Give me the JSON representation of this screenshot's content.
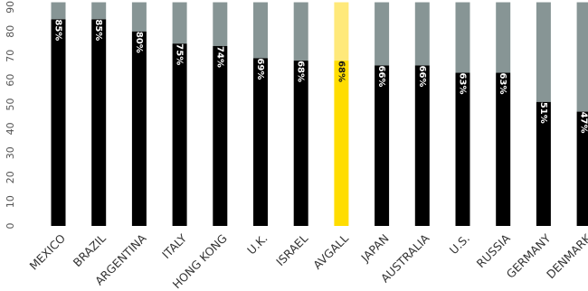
{
  "chart_data": {
    "type": "bar",
    "stacked": true,
    "categories": [
      "MEXICO",
      "BRAZIL",
      "ARGENTINA",
      "ITALY",
      "HONG KONG",
      "U.K.",
      "ISRAEL",
      "AVGALL",
      "JAPAN",
      "AUSTRALIA",
      "U.S.",
      "RUSSIA",
      "GERMANY",
      "DENMARK"
    ],
    "values": [
      85,
      85,
      80,
      75,
      74,
      69,
      68,
      68,
      66,
      66,
      63,
      63,
      51,
      47
    ],
    "value_labels": [
      "85%",
      "85%",
      "80%",
      "75%",
      "74%",
      "69%",
      "68%",
      "68%",
      "66%",
      "66%",
      "63%",
      "63%",
      "51%",
      "47%"
    ],
    "total": [
      92,
      92,
      92,
      92,
      92,
      92,
      92,
      92,
      92,
      92,
      92,
      92,
      92,
      92
    ],
    "highlight_category": "AVGALL",
    "yticks": [
      0,
      10,
      20,
      30,
      40,
      50,
      60,
      70,
      80,
      90
    ],
    "ylim": [
      0,
      92
    ],
    "grid": false,
    "legend": "none",
    "colors": {
      "bar": "#000000",
      "remainder": "#879595",
      "highlight_bar": "#ffdd00",
      "highlight_remainder": "#ffe97a"
    }
  }
}
